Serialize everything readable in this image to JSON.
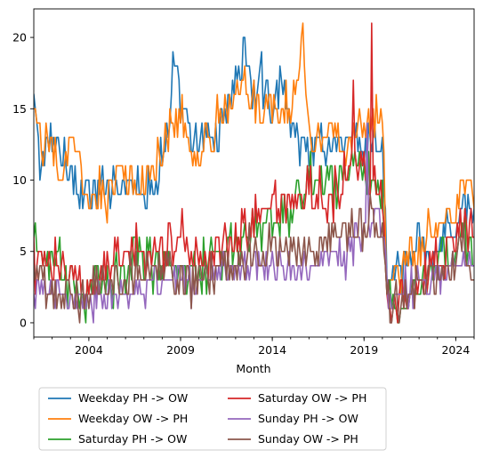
{
  "chart_data": {
    "type": "line",
    "xlabel": "Month",
    "ylabel": "",
    "x_start": "2001-01",
    "x_end": "2025-01",
    "xlim": [
      "2001-01",
      "2025-01"
    ],
    "ylim": [
      -1,
      22
    ],
    "x_ticks": [
      {
        "date": "2004-01",
        "label": "2004"
      },
      {
        "date": "2009-01",
        "label": "2009"
      },
      {
        "date": "2014-01",
        "label": "2014"
      },
      {
        "date": "2019-01",
        "label": "2019"
      },
      {
        "date": "2024-01",
        "label": "2024"
      }
    ],
    "y_ticks": [
      0,
      5,
      10,
      15,
      20
    ],
    "grid": false,
    "legend_position": "below",
    "legend_columns": 2,
    "series": [
      {
        "name": "Weekday PH -> OW",
        "color": "#1f77b4",
        "keypoints": [
          [
            "2001-01",
            15
          ],
          [
            "2001-06",
            11
          ],
          [
            "2002-01",
            13
          ],
          [
            "2003-01",
            11
          ],
          [
            "2003-06",
            9
          ],
          [
            "2004-06",
            9
          ],
          [
            "2005-06",
            10
          ],
          [
            "2006-06",
            10
          ],
          [
            "2007-06",
            9
          ],
          [
            "2008-01",
            12
          ],
          [
            "2008-06",
            14
          ],
          [
            "2008-08",
            18
          ],
          [
            "2009-01",
            15
          ],
          [
            "2009-06",
            13
          ],
          [
            "2010-01",
            12
          ],
          [
            "2010-06",
            13
          ],
          [
            "2011-01",
            13
          ],
          [
            "2011-06",
            15
          ],
          [
            "2012-01",
            17
          ],
          [
            "2012-06",
            19
          ],
          [
            "2013-01",
            16
          ],
          [
            "2013-06",
            17
          ],
          [
            "2014-01",
            15
          ],
          [
            "2014-06",
            17
          ],
          [
            "2015-01",
            14
          ],
          [
            "2015-06",
            13
          ],
          [
            "2016-01",
            12
          ],
          [
            "2016-06",
            13
          ],
          [
            "2017-01",
            12
          ],
          [
            "2017-06",
            13
          ],
          [
            "2018-01",
            12
          ],
          [
            "2018-06",
            13
          ],
          [
            "2019-01",
            12
          ],
          [
            "2019-06",
            13
          ],
          [
            "2020-01",
            12
          ],
          [
            "2020-03",
            8
          ],
          [
            "2020-04",
            3
          ],
          [
            "2020-06",
            3
          ],
          [
            "2021-01",
            3
          ],
          [
            "2021-06",
            4
          ],
          [
            "2022-01",
            6
          ],
          [
            "2022-06",
            5
          ],
          [
            "2023-01",
            5
          ],
          [
            "2023-06",
            7
          ],
          [
            "2024-01",
            6
          ],
          [
            "2024-06",
            9
          ],
          [
            "2025-01",
            7
          ]
        ],
        "noise": 1.5,
        "min": 0
      },
      {
        "name": "Weekday OW -> PH",
        "color": "#ff7f0e",
        "keypoints": [
          [
            "2001-01",
            15
          ],
          [
            "2001-06",
            12
          ],
          [
            "2002-01",
            13
          ],
          [
            "2002-06",
            10
          ],
          [
            "2003-01",
            12
          ],
          [
            "2003-06",
            11
          ],
          [
            "2004-01",
            8
          ],
          [
            "2004-06",
            9
          ],
          [
            "2005-01",
            9
          ],
          [
            "2005-06",
            11
          ],
          [
            "2006-01",
            10
          ],
          [
            "2006-06",
            9
          ],
          [
            "2007-01",
            10
          ],
          [
            "2007-06",
            11
          ],
          [
            "2008-01",
            12
          ],
          [
            "2008-06",
            14
          ],
          [
            "2009-01",
            15
          ],
          [
            "2009-06",
            12
          ],
          [
            "2010-01",
            12
          ],
          [
            "2010-06",
            13
          ],
          [
            "2011-01",
            14
          ],
          [
            "2011-06",
            15
          ],
          [
            "2012-01",
            17
          ],
          [
            "2012-06",
            17
          ],
          [
            "2013-01",
            16
          ],
          [
            "2013-06",
            15
          ],
          [
            "2014-01",
            15
          ],
          [
            "2014-06",
            15
          ],
          [
            "2015-01",
            15
          ],
          [
            "2015-06",
            17
          ],
          [
            "2015-09",
            20
          ],
          [
            "2016-01",
            14
          ],
          [
            "2016-06",
            13
          ],
          [
            "2017-01",
            14
          ],
          [
            "2017-06",
            13
          ],
          [
            "2018-01",
            12
          ],
          [
            "2018-06",
            13
          ],
          [
            "2019-01",
            13
          ],
          [
            "2019-06",
            14
          ],
          [
            "2020-01",
            14
          ],
          [
            "2020-03",
            7
          ],
          [
            "2020-04",
            3
          ],
          [
            "2020-06",
            3
          ],
          [
            "2021-01",
            3
          ],
          [
            "2021-06",
            4
          ],
          [
            "2022-01",
            5
          ],
          [
            "2022-06",
            6
          ],
          [
            "2023-01",
            6
          ],
          [
            "2023-06",
            7
          ],
          [
            "2024-01",
            8
          ],
          [
            "2024-06",
            10
          ],
          [
            "2025-01",
            9
          ]
        ],
        "noise": 1.5,
        "min": 0
      },
      {
        "name": "Saturday PH -> OW",
        "color": "#2ca02c",
        "keypoints": [
          [
            "2001-01",
            5
          ],
          [
            "2002-01",
            4
          ],
          [
            "2003-01",
            3
          ],
          [
            "2004-01",
            2
          ],
          [
            "2005-01",
            3
          ],
          [
            "2006-01",
            4
          ],
          [
            "2007-01",
            5
          ],
          [
            "2008-01",
            4
          ],
          [
            "2009-01",
            4
          ],
          [
            "2010-01",
            4
          ],
          [
            "2011-01",
            5
          ],
          [
            "2012-01",
            5
          ],
          [
            "2013-01",
            6
          ],
          [
            "2014-01",
            7
          ],
          [
            "2015-01",
            8
          ],
          [
            "2016-01",
            10
          ],
          [
            "2017-01",
            10
          ],
          [
            "2018-01",
            11
          ],
          [
            "2019-01",
            11
          ],
          [
            "2019-06",
            10
          ],
          [
            "2020-01",
            9
          ],
          [
            "2020-03",
            4
          ],
          [
            "2020-06",
            1
          ],
          [
            "2021-01",
            1
          ],
          [
            "2021-06",
            2
          ],
          [
            "2022-01",
            3
          ],
          [
            "2022-06",
            3
          ],
          [
            "2023-01",
            4
          ],
          [
            "2023-06",
            5
          ],
          [
            "2024-01",
            5
          ],
          [
            "2024-06",
            7
          ],
          [
            "2025-01",
            5
          ]
        ],
        "noise": 1.8,
        "min": 0
      },
      {
        "name": "Saturday OW -> PH",
        "color": "#d62728",
        "keypoints": [
          [
            "2001-01",
            4
          ],
          [
            "2002-01",
            4
          ],
          [
            "2003-01",
            3
          ],
          [
            "2004-01",
            3
          ],
          [
            "2005-01",
            4
          ],
          [
            "2006-01",
            5
          ],
          [
            "2007-01",
            5
          ],
          [
            "2008-01",
            5
          ],
          [
            "2009-01",
            6
          ],
          [
            "2010-01",
            5
          ],
          [
            "2011-01",
            5
          ],
          [
            "2012-01",
            6
          ],
          [
            "2013-01",
            7
          ],
          [
            "2014-01",
            8
          ],
          [
            "2015-01",
            8
          ],
          [
            "2016-01",
            9
          ],
          [
            "2017-01",
            9
          ],
          [
            "2018-01",
            10
          ],
          [
            "2018-09",
            12
          ],
          [
            "2019-01",
            11
          ],
          [
            "2019-06",
            10
          ],
          [
            "2020-01",
            9
          ],
          [
            "2020-03",
            4
          ],
          [
            "2020-06",
            1
          ],
          [
            "2021-01",
            2
          ],
          [
            "2021-06",
            2
          ],
          [
            "2022-01",
            3
          ],
          [
            "2022-06",
            4
          ],
          [
            "2023-01",
            5
          ],
          [
            "2023-06",
            5
          ],
          [
            "2024-01",
            6
          ],
          [
            "2024-06",
            7
          ],
          [
            "2025-01",
            6
          ]
        ],
        "noise": 1.8,
        "min": 0,
        "overrides": [
          [
            "2019-06",
            21
          ],
          [
            "2018-06",
            17
          ]
        ]
      },
      {
        "name": "Sunday PH -> OW",
        "color": "#9467bd",
        "keypoints": [
          [
            "2001-01",
            2
          ],
          [
            "2002-01",
            2
          ],
          [
            "2003-01",
            2
          ],
          [
            "2004-01",
            1.5
          ],
          [
            "2005-01",
            2
          ],
          [
            "2006-01",
            2
          ],
          [
            "2007-01",
            2
          ],
          [
            "2008-01",
            3
          ],
          [
            "2009-01",
            3
          ],
          [
            "2010-01",
            3
          ],
          [
            "2011-01",
            4
          ],
          [
            "2012-01",
            4
          ],
          [
            "2013-01",
            4
          ],
          [
            "2014-01",
            4
          ],
          [
            "2015-01",
            4
          ],
          [
            "2016-01",
            4
          ],
          [
            "2017-01",
            5
          ],
          [
            "2018-01",
            5
          ],
          [
            "2019-01",
            6
          ],
          [
            "2019-06",
            7
          ],
          [
            "2020-01",
            7
          ],
          [
            "2020-03",
            3
          ],
          [
            "2020-06",
            1.5
          ],
          [
            "2021-01",
            2
          ],
          [
            "2022-01",
            3
          ],
          [
            "2023-01",
            3
          ],
          [
            "2024-01",
            4
          ],
          [
            "2025-01",
            4
          ]
        ],
        "noise": 1.3,
        "min": 0,
        "overrides": [
          [
            "2019-03",
            14
          ]
        ]
      },
      {
        "name": "Sunday OW -> PH",
        "color": "#8c564b",
        "keypoints": [
          [
            "2001-01",
            3
          ],
          [
            "2002-01",
            2
          ],
          [
            "2003-01",
            2
          ],
          [
            "2004-01",
            2
          ],
          [
            "2005-01",
            3
          ],
          [
            "2006-01",
            3
          ],
          [
            "2007-01",
            4
          ],
          [
            "2008-01",
            4
          ],
          [
            "2009-01",
            3
          ],
          [
            "2010-01",
            3
          ],
          [
            "2011-01",
            4
          ],
          [
            "2012-01",
            4
          ],
          [
            "2013-01",
            5
          ],
          [
            "2014-01",
            5
          ],
          [
            "2015-01",
            5
          ],
          [
            "2016-01",
            5
          ],
          [
            "2017-01",
            6
          ],
          [
            "2018-01",
            6
          ],
          [
            "2019-01",
            7
          ],
          [
            "2019-06",
            8
          ],
          [
            "2020-01",
            7
          ],
          [
            "2020-03",
            3
          ],
          [
            "2020-06",
            1
          ],
          [
            "2021-01",
            1.5
          ],
          [
            "2022-01",
            2.5
          ],
          [
            "2023-01",
            3
          ],
          [
            "2024-01",
            4
          ],
          [
            "2024-06",
            5
          ],
          [
            "2025-01",
            3
          ]
        ],
        "noise": 1.5,
        "min": 0
      }
    ]
  }
}
